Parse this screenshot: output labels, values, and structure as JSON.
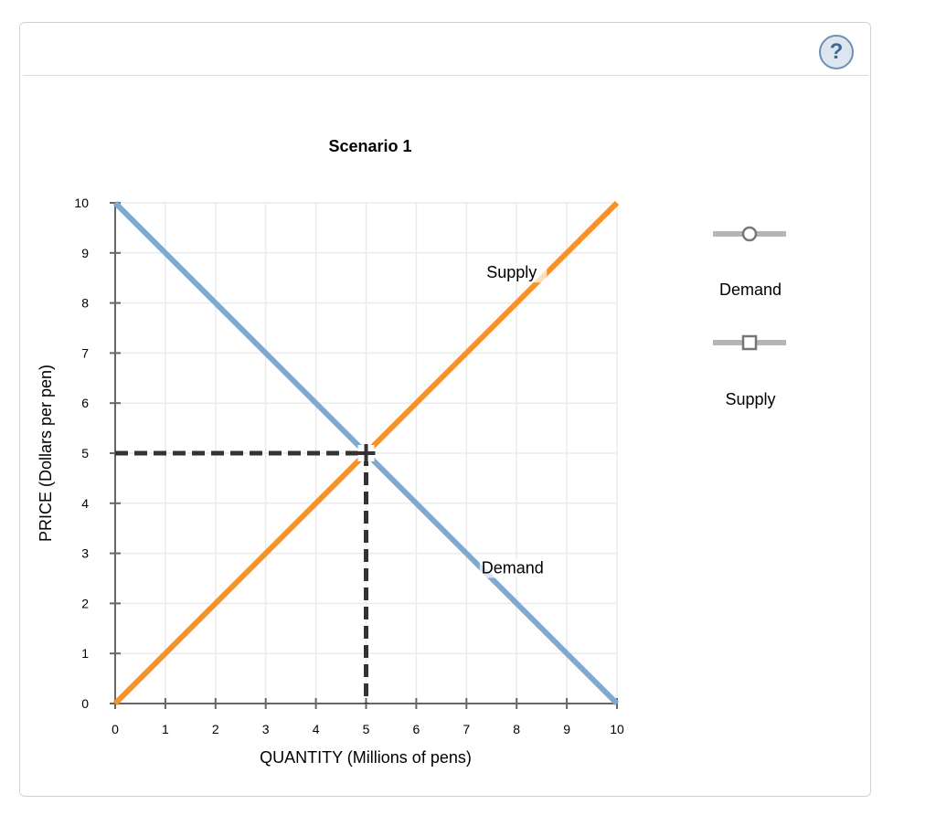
{
  "help": {
    "label": "?",
    "icon": "help-circle-icon"
  },
  "chart_data": {
    "type": "line",
    "title": "Scenario 1",
    "xlabel": "QUANTITY (Millions of pens)",
    "ylabel": "PRICE (Dollars per pen)",
    "xlim": [
      0,
      10
    ],
    "ylim": [
      0,
      10
    ],
    "x_ticks": [
      "0",
      "1",
      "2",
      "3",
      "4",
      "5",
      "6",
      "7",
      "8",
      "9",
      "10"
    ],
    "y_ticks": [
      "0",
      "1",
      "2",
      "3",
      "4",
      "5",
      "6",
      "7",
      "8",
      "9",
      "10"
    ],
    "grid": true,
    "legend_position": "right",
    "series": [
      {
        "name": "Demand",
        "color": "#7fa9d1",
        "marker": "circle",
        "x": [
          0,
          10
        ],
        "y": [
          10,
          0
        ],
        "label": "Demand",
        "label_at": [
          7.3,
          2.6
        ]
      },
      {
        "name": "Supply",
        "color": "#f7922a",
        "marker": "square",
        "x": [
          0,
          10
        ],
        "y": [
          0,
          10
        ],
        "label": "Supply",
        "label_at": [
          7.4,
          8.5
        ]
      }
    ],
    "annotations": [
      {
        "type": "equilibrium-crosshair",
        "x": 5,
        "y": 5,
        "color": "#333333",
        "dashed_to_axes": true
      }
    ]
  },
  "legend": {
    "items": [
      {
        "label": "Demand",
        "marker": "circle"
      },
      {
        "label": "Supply",
        "marker": "square"
      }
    ]
  }
}
